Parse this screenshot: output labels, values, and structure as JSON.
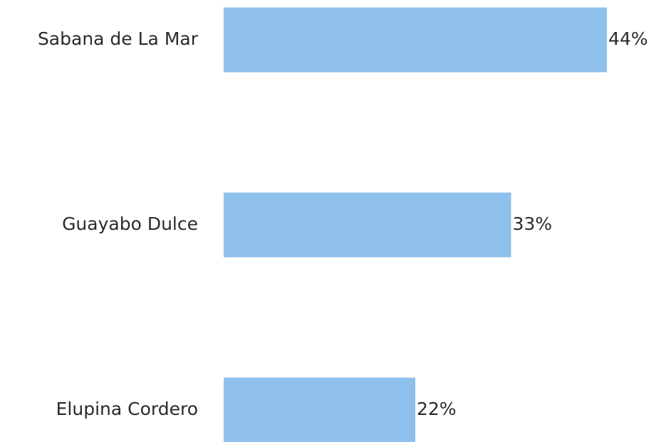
{
  "chart_data": {
    "type": "bar",
    "orientation": "horizontal",
    "categories": [
      "Sabana de La Mar",
      "Guayabo Dulce",
      "Elupina Cordero"
    ],
    "values": [
      44,
      33,
      22
    ],
    "value_labels": [
      "44%",
      "33%",
      "22%"
    ],
    "color": "#8fc0eb"
  }
}
